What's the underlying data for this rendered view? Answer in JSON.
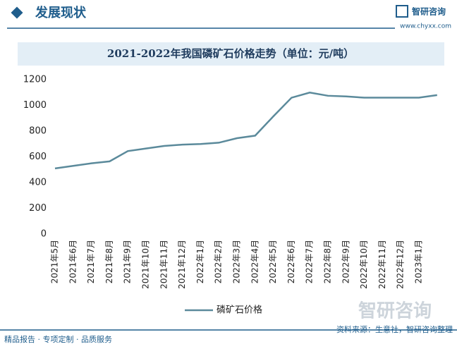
{
  "header": {
    "section": "发展现状",
    "brand": "智研咨询",
    "url": "www.chyxx.com"
  },
  "chart_data": {
    "type": "line",
    "title": "2021-2022年我国磷矿石价格走势（单位：元/吨）",
    "categories": [
      "2021年5月",
      "2021年6月",
      "2021年7月",
      "2021年8月",
      "2021年9月",
      "2021年10月",
      "2021年11月",
      "2021年12月",
      "2022年1月",
      "2022年2月",
      "2022年3月",
      "2022年4月",
      "2022年5月",
      "2022年6月",
      "2022年7月",
      "2022年8月",
      "2022年9月",
      "2022年10月",
      "2022年11月",
      "2022年12月",
      "2023年1月",
      null
    ],
    "series": [
      {
        "name": "磷矿石价格",
        "color": "#5b8a9b",
        "values": [
          510,
          530,
          550,
          565,
          645,
          665,
          685,
          695,
          700,
          710,
          745,
          765,
          915,
          1060,
          1100,
          1075,
          1070,
          1060,
          1060,
          1060,
          1060,
          1080
        ]
      }
    ],
    "ylim": [
      0,
      1200
    ],
    "yticks": [
      0,
      200,
      400,
      600,
      800,
      1000,
      1200
    ],
    "grid": false,
    "legend": "bottom"
  },
  "footer": {
    "slogan": "精品报告 · 专项定制 · 品质服务",
    "source": "资料来源：生意社，智研咨询整理",
    "watermark": "智研咨询"
  }
}
